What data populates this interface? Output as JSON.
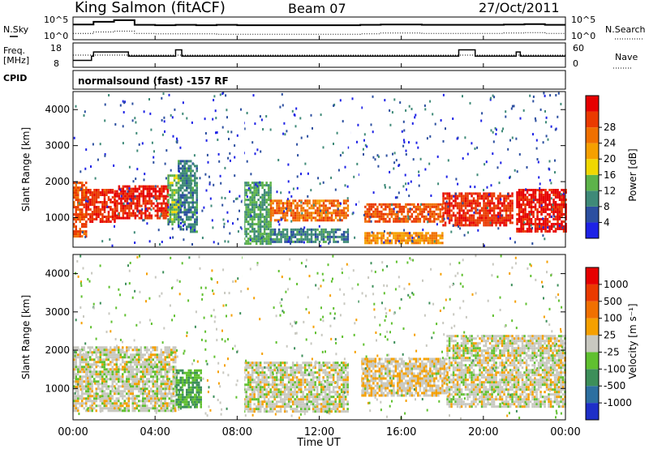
{
  "header": {
    "station": "King Salmon (fitACF)",
    "beam": "Beam 07",
    "date": "27/Oct/2011",
    "cpid_label": "CPID",
    "program": "normalsound (fast) -157 RF"
  },
  "noise_panel": {
    "left_label": "N.Sky",
    "right_label": "N.Search",
    "left_ticks": [
      "10^5",
      "10^0"
    ],
    "right_ticks": [
      "10^5",
      "10^0"
    ]
  },
  "freq_panel": {
    "left_label_1": "Freq.",
    "left_label_2": "[MHz]",
    "right_label": "Nave",
    "left_ticks": [
      "18",
      "8"
    ],
    "right_ticks": [
      "60",
      "0"
    ]
  },
  "x_axis": {
    "label": "Time UT",
    "ticks": [
      "00:00",
      "04:00",
      "08:00",
      "12:00",
      "16:00",
      "20:00",
      "00:00"
    ]
  },
  "y_axis": {
    "label": "Slant Range [km]",
    "ticks": [
      "1000",
      "2000",
      "3000",
      "4000"
    ]
  },
  "power_bar": {
    "label": "Power [dB]",
    "ticks": [
      "4",
      "8",
      "12",
      "16",
      "20",
      "24",
      "28"
    ],
    "colors": [
      "#1e22e6",
      "#2c4fa0",
      "#3f8a78",
      "#5db34a",
      "#f0d800",
      "#f5a000",
      "#f07000",
      "#ea3a00",
      "#e60000"
    ]
  },
  "velocity_bar": {
    "label": "Velocity [m s⁻¹]",
    "ticks": [
      "1000",
      "500",
      "100",
      "25",
      "-25",
      "-100",
      "-500",
      "-1000"
    ],
    "colors": [
      "#1e2fc8",
      "#2d6fa0",
      "#3d8f5a",
      "#60c030",
      "#c8c8c0",
      "#f5a000",
      "#f07000",
      "#ea3a00",
      "#e60000"
    ]
  },
  "chart_data": [
    {
      "type": "line",
      "title": "N.Sky / N.Search",
      "x": [
        0,
        1,
        2,
        3,
        4,
        5,
        6,
        7,
        8,
        9,
        10,
        11,
        12,
        13,
        14,
        15,
        16,
        17,
        18,
        19,
        20,
        21,
        22,
        23,
        24
      ],
      "ylim": [
        0,
        5
      ],
      "series": [
        {
          "name": "N.Sky",
          "values": [
            3.5,
            4.2,
            4.6,
            3.4,
            3.3,
            3.4,
            3.3,
            3.4,
            3.3,
            3.3,
            3.3,
            3.3,
            3.3,
            3.3,
            3.4,
            3.5,
            3.5,
            3.4,
            3.4,
            3.4,
            3.4,
            3.5,
            3.6,
            3.4,
            3.4
          ]
        },
        {
          "name": "N.Search",
          "values": [
            1.2,
            1.6,
            1.8,
            1.2,
            1.1,
            1.1,
            1.1,
            1.0,
            1.0,
            1.0,
            1.0,
            1.0,
            1.0,
            1.0,
            1.1,
            1.3,
            1.3,
            1.2,
            1.2,
            1.2,
            1.2,
            1.3,
            1.4,
            1.2,
            1.2
          ]
        }
      ]
    },
    {
      "type": "line",
      "title": "Freq / Nave",
      "x": [
        0,
        0.9,
        1.0,
        1.4,
        1.6,
        2.7,
        3.0,
        5.0,
        5.3,
        13.5,
        18.8,
        19.3,
        19.6,
        21.6,
        21.8,
        22.0,
        24
      ],
      "ylim": [
        8,
        18
      ],
      "series": [
        {
          "name": "Freq",
          "values": [
            10.5,
            12.5,
            14.5,
            14.5,
            14.5,
            12.5,
            12.5,
            15.5,
            12.5,
            12.5,
            15.5,
            15.5,
            12.5,
            14.5,
            12.5,
            12.5,
            12.5
          ]
        },
        {
          "name": "Nave",
          "values": [
            30,
            30,
            30,
            30,
            30,
            30,
            30,
            30,
            30,
            30,
            30,
            30,
            30,
            30,
            30,
            30,
            30
          ]
        }
      ]
    },
    {
      "type": "heatmap",
      "title": "Power [dB]",
      "x_range": [
        0,
        24
      ],
      "y_range": [
        180,
        4500
      ],
      "value_range": [
        0,
        30
      ],
      "regions": [
        {
          "t": [
            0.0,
            0.6
          ],
          "r": [
            500,
            2000
          ],
          "v": 24
        },
        {
          "t": [
            0.6,
            2.0
          ],
          "r": [
            900,
            1800
          ],
          "v": 26
        },
        {
          "t": [
            2.0,
            4.6
          ],
          "r": [
            1000,
            1900
          ],
          "v": 27
        },
        {
          "t": [
            4.6,
            5.1
          ],
          "r": [
            800,
            2200
          ],
          "v": 12
        },
        {
          "t": [
            5.1,
            6.0
          ],
          "r": [
            600,
            2600
          ],
          "v": 8
        },
        {
          "t": [
            8.3,
            9.6
          ],
          "r": [
            300,
            2000
          ],
          "v": 10
        },
        {
          "t": [
            9.6,
            13.4
          ],
          "r": [
            900,
            1500
          ],
          "v": 22
        },
        {
          "t": [
            9.6,
            13.4
          ],
          "r": [
            350,
            700
          ],
          "v": 8
        },
        {
          "t": [
            14.2,
            18.0
          ],
          "r": [
            900,
            1400
          ],
          "v": 24
        },
        {
          "t": [
            14.2,
            18.0
          ],
          "r": [
            300,
            600
          ],
          "v": 20
        },
        {
          "t": [
            18.0,
            21.4
          ],
          "r": [
            800,
            1700
          ],
          "v": 26
        },
        {
          "t": [
            21.6,
            24.0
          ],
          "r": [
            600,
            1800
          ],
          "v": 28
        }
      ]
    },
    {
      "type": "heatmap",
      "title": "Velocity [m s⁻¹]",
      "x_range": [
        0,
        24
      ],
      "y_range": [
        180,
        4500
      ],
      "value_range": [
        -1000,
        1000
      ],
      "regions": [
        {
          "t": [
            0.0,
            5.0
          ],
          "r": [
            400,
            2100
          ],
          "v": 0
        },
        {
          "t": [
            5.0,
            6.2
          ],
          "r": [
            500,
            1500
          ],
          "v": -300
        },
        {
          "t": [
            8.3,
            13.4
          ],
          "r": [
            400,
            1700
          ],
          "v": 0
        },
        {
          "t": [
            14.0,
            18.2
          ],
          "r": [
            800,
            1800
          ],
          "v": 60
        },
        {
          "t": [
            18.2,
            24.0
          ],
          "r": [
            500,
            2400
          ],
          "v": 0
        }
      ]
    }
  ]
}
